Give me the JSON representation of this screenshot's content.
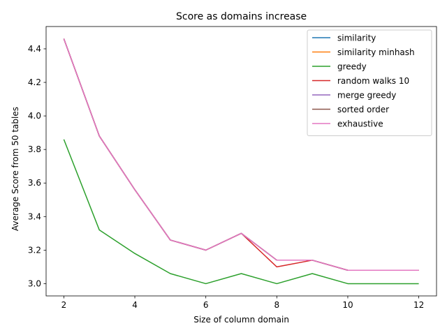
{
  "chart_data": {
    "type": "line",
    "title": "Score as domains increase",
    "xlabel": "Size of column domain",
    "ylabel": "Average Score from 50 tables",
    "x": [
      2,
      3,
      4,
      5,
      6,
      7,
      8,
      9,
      10,
      11,
      12
    ],
    "xlim": [
      1.5,
      12.5
    ],
    "ylim": [
      2.927,
      4.533
    ],
    "xticks": [
      2,
      4,
      6,
      8,
      10,
      12
    ],
    "yticks": [
      3.0,
      3.2,
      3.4,
      3.6,
      3.8,
      4.0,
      4.2,
      4.4
    ],
    "xtick_labels": [
      "2",
      "4",
      "6",
      "8",
      "10",
      "12"
    ],
    "ytick_labels": [
      "3.0",
      "3.2",
      "3.4",
      "3.6",
      "3.8",
      "4.0",
      "4.2",
      "4.4"
    ],
    "grid": false,
    "legend_position": "top-right",
    "series": [
      {
        "name": "similarity",
        "color": "#1f77b4",
        "values": [
          4.46,
          3.88,
          3.56,
          3.26,
          3.2,
          3.3,
          3.14,
          3.14,
          3.08,
          3.08,
          3.08
        ]
      },
      {
        "name": "similarity minhash",
        "color": "#ff7f0e",
        "values": [
          4.46,
          3.88,
          3.56,
          3.26,
          3.2,
          3.3,
          3.14,
          3.14,
          3.08,
          3.08,
          3.08
        ]
      },
      {
        "name": "greedy",
        "color": "#2ca02c",
        "values": [
          3.86,
          3.32,
          3.18,
          3.06,
          3.0,
          3.06,
          3.0,
          3.06,
          3.0,
          3.0,
          3.0
        ]
      },
      {
        "name": "random walks 10",
        "color": "#d62728",
        "values": [
          4.46,
          3.88,
          3.56,
          3.26,
          3.2,
          3.3,
          3.1,
          3.14,
          3.08,
          3.08,
          3.08
        ]
      },
      {
        "name": "merge greedy",
        "color": "#9467bd",
        "values": [
          4.46,
          3.88,
          3.56,
          3.26,
          3.2,
          3.3,
          3.14,
          3.14,
          3.08,
          3.08,
          3.08
        ]
      },
      {
        "name": "sorted order",
        "color": "#8c564b",
        "values": [
          4.46,
          3.88,
          3.56,
          3.26,
          3.2,
          3.3,
          3.14,
          3.14,
          3.08,
          3.08,
          3.08
        ]
      },
      {
        "name": "exhaustive",
        "color": "#e377c2",
        "values": [
          4.46,
          3.88,
          3.56,
          3.26,
          3.2,
          3.3,
          3.14,
          3.14,
          3.08,
          3.08,
          3.08
        ]
      }
    ]
  }
}
